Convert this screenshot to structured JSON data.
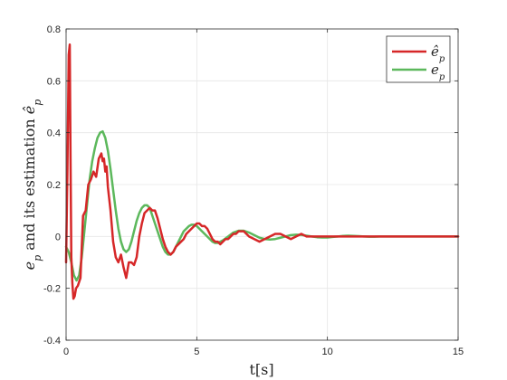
{
  "chart_data": {
    "type": "line",
    "xlabel": "t[s]",
    "ylabel": "e_p and its estimation ê_p",
    "ylabel_parts": {
      "main_var": "e",
      "main_sub": "p",
      "mid_text": " and its estimation ",
      "est_var": "ê",
      "est_sub": "p"
    },
    "xlim": [
      0,
      15
    ],
    "ylim": [
      -0.4,
      0.8
    ],
    "xticks": [
      "0",
      "5",
      "10",
      "15"
    ],
    "yticks": [
      "-0.4",
      "-0.2",
      "0",
      "0.2",
      "0.4",
      "0.6",
      "0.8"
    ],
    "grid": true,
    "legend_position": "top-right",
    "series": [
      {
        "name": "ê_p",
        "legend_var": "ê",
        "legend_sub": "p",
        "color": "#d62728",
        "x": [
          0,
          0.05,
          0.1,
          0.14,
          0.17,
          0.2,
          0.24,
          0.28,
          0.33,
          0.38,
          0.45,
          0.55,
          0.65,
          0.75,
          0.85,
          0.95,
          1.05,
          1.15,
          1.25,
          1.3,
          1.35,
          1.4,
          1.45,
          1.5,
          1.55,
          1.6,
          1.7,
          1.8,
          1.9,
          2.0,
          2.1,
          2.2,
          2.3,
          2.4,
          2.5,
          2.6,
          2.7,
          2.8,
          2.9,
          3.0,
          3.1,
          3.2,
          3.3,
          3.4,
          3.5,
          3.6,
          3.7,
          3.8,
          3.9,
          4.0,
          4.1,
          4.2,
          4.3,
          4.4,
          4.5,
          4.6,
          4.7,
          4.8,
          4.9,
          5.0,
          5.1,
          5.2,
          5.3,
          5.4,
          5.5,
          5.6,
          5.7,
          5.8,
          5.9,
          6.0,
          6.1,
          6.2,
          6.3,
          6.4,
          6.5,
          6.6,
          6.8,
          7.0,
          7.2,
          7.4,
          7.6,
          7.8,
          8.0,
          8.2,
          8.4,
          8.6,
          8.8,
          9.0,
          9.2,
          9.4,
          9.6,
          9.8,
          10.0,
          10.5,
          11.0,
          11.5,
          12.0,
          12.5,
          13.0,
          13.5,
          14.0,
          14.5,
          15.0
        ],
        "y": [
          -0.1,
          0.25,
          0.7,
          0.74,
          0.3,
          -0.08,
          -0.18,
          -0.24,
          -0.23,
          -0.2,
          -0.19,
          -0.16,
          0.08,
          0.1,
          0.2,
          0.22,
          0.25,
          0.23,
          0.3,
          0.31,
          0.32,
          0.29,
          0.3,
          0.25,
          0.27,
          0.19,
          0.1,
          -0.02,
          -0.08,
          -0.1,
          -0.07,
          -0.12,
          -0.16,
          -0.1,
          -0.1,
          -0.11,
          -0.08,
          0.0,
          0.05,
          0.09,
          0.1,
          0.11,
          0.1,
          0.1,
          0.07,
          0.03,
          -0.01,
          -0.04,
          -0.06,
          -0.07,
          -0.06,
          -0.04,
          -0.03,
          -0.02,
          -0.01,
          0.01,
          0.02,
          0.03,
          0.04,
          0.05,
          0.05,
          0.04,
          0.04,
          0.03,
          0.01,
          -0.01,
          -0.02,
          -0.02,
          -0.03,
          -0.02,
          -0.01,
          -0.01,
          0.0,
          0.01,
          0.01,
          0.02,
          0.02,
          0.0,
          -0.01,
          -0.02,
          -0.01,
          0.0,
          0.01,
          0.01,
          0.0,
          -0.01,
          0.0,
          0.01,
          0.0,
          0.0,
          0.0,
          0.0,
          0.0,
          0.0,
          0.0,
          0.0,
          0.0,
          0.0,
          0.0,
          0.0,
          0.0,
          0.0,
          0.0
        ]
      },
      {
        "name": "e_p",
        "legend_var": "e",
        "legend_sub": "p",
        "color": "#5cb85c",
        "x": [
          0,
          0.1,
          0.2,
          0.3,
          0.4,
          0.5,
          0.6,
          0.7,
          0.8,
          0.9,
          1.0,
          1.1,
          1.2,
          1.3,
          1.4,
          1.5,
          1.6,
          1.7,
          1.8,
          1.9,
          2.0,
          2.1,
          2.2,
          2.3,
          2.4,
          2.5,
          2.6,
          2.7,
          2.8,
          2.9,
          3.0,
          3.1,
          3.2,
          3.3,
          3.4,
          3.5,
          3.6,
          3.7,
          3.8,
          3.9,
          4.0,
          4.1,
          4.2,
          4.3,
          4.4,
          4.5,
          4.6,
          4.7,
          4.8,
          4.9,
          5.0,
          5.1,
          5.2,
          5.3,
          5.4,
          5.5,
          5.6,
          5.7,
          5.8,
          5.9,
          6.0,
          6.2,
          6.4,
          6.6,
          6.8,
          7.0,
          7.2,
          7.4,
          7.6,
          7.8,
          8.0,
          8.2,
          8.4,
          8.6,
          8.8,
          9.0,
          9.2,
          9.4,
          9.6,
          9.8,
          10.0,
          10.2,
          10.4,
          10.6,
          10.8,
          11.0,
          11.2,
          11.4,
          11.6,
          11.8,
          12.0,
          12.5,
          13.0,
          13.5,
          14.0,
          14.5,
          15.0
        ],
        "y": [
          -0.04,
          -0.06,
          -0.1,
          -0.15,
          -0.17,
          -0.15,
          -0.08,
          0.02,
          0.12,
          0.22,
          0.29,
          0.34,
          0.38,
          0.4,
          0.405,
          0.38,
          0.33,
          0.26,
          0.18,
          0.1,
          0.03,
          -0.02,
          -0.05,
          -0.06,
          -0.05,
          -0.02,
          0.02,
          0.06,
          0.09,
          0.11,
          0.12,
          0.12,
          0.11,
          0.08,
          0.05,
          0.02,
          -0.01,
          -0.04,
          -0.06,
          -0.07,
          -0.07,
          -0.06,
          -0.04,
          -0.02,
          0.0,
          0.02,
          0.03,
          0.04,
          0.045,
          0.045,
          0.04,
          0.03,
          0.02,
          0.01,
          0.0,
          -0.01,
          -0.02,
          -0.025,
          -0.025,
          -0.02,
          -0.015,
          0.0,
          0.015,
          0.022,
          0.022,
          0.015,
          0.005,
          -0.005,
          -0.01,
          -0.012,
          -0.01,
          -0.005,
          0.0,
          0.005,
          0.007,
          0.006,
          0.003,
          0.0,
          -0.003,
          -0.004,
          -0.004,
          -0.002,
          0.0,
          0.002,
          0.003,
          0.002,
          0.001,
          0.0,
          -0.001,
          -0.001,
          0.0,
          0.0,
          0.0,
          0.0,
          0.0,
          0.0,
          0.0
        ]
      }
    ]
  }
}
